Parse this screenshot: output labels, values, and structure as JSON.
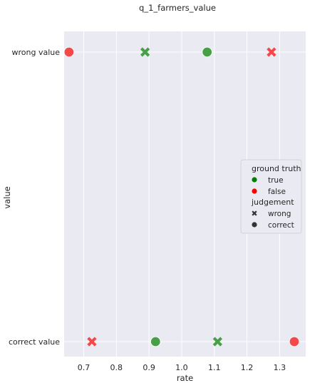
{
  "chart_data": {
    "type": "scatter",
    "title": "q_1_farmers_value",
    "xlabel": "rate",
    "ylabel": "value",
    "xlim": [
      0.64,
      1.38
    ],
    "x_ticks": [
      0.7,
      0.8,
      0.9,
      1.0,
      1.1,
      1.2,
      1.3
    ],
    "x_tick_labels": [
      "0.7",
      "0.8",
      "0.9",
      "1.0",
      "1.1",
      "1.2",
      "1.3"
    ],
    "categories": [
      "wrong value",
      "correct value"
    ],
    "grid": true,
    "background_color": "#eaeaf2",
    "grid_color": "#ffffff",
    "points": [
      {
        "x": 0.655,
        "y": "wrong value",
        "ground_truth": "false",
        "judgement": "correct"
      },
      {
        "x": 0.888,
        "y": "wrong value",
        "ground_truth": "true",
        "judgement": "wrong"
      },
      {
        "x": 1.078,
        "y": "wrong value",
        "ground_truth": "true",
        "judgement": "correct"
      },
      {
        "x": 1.275,
        "y": "wrong value",
        "ground_truth": "false",
        "judgement": "wrong"
      },
      {
        "x": 0.725,
        "y": "correct value",
        "ground_truth": "false",
        "judgement": "wrong"
      },
      {
        "x": 0.92,
        "y": "correct value",
        "ground_truth": "true",
        "judgement": "correct"
      },
      {
        "x": 1.11,
        "y": "correct value",
        "ground_truth": "true",
        "judgement": "wrong"
      },
      {
        "x": 1.345,
        "y": "correct value",
        "ground_truth": "false",
        "judgement": "correct"
      }
    ],
    "colors": {
      "true": "#3a9a3a",
      "false": "#f53b3b"
    },
    "legend": {
      "placement": "center-right",
      "hue_title": "ground truth",
      "hue_items": [
        {
          "label": "true",
          "color": "#008000"
        },
        {
          "label": "false",
          "color": "#ff0000"
        }
      ],
      "style_title": "judgement",
      "style_items": [
        {
          "label": "wrong",
          "marker": "x"
        },
        {
          "label": "correct",
          "marker": "o"
        }
      ]
    }
  }
}
